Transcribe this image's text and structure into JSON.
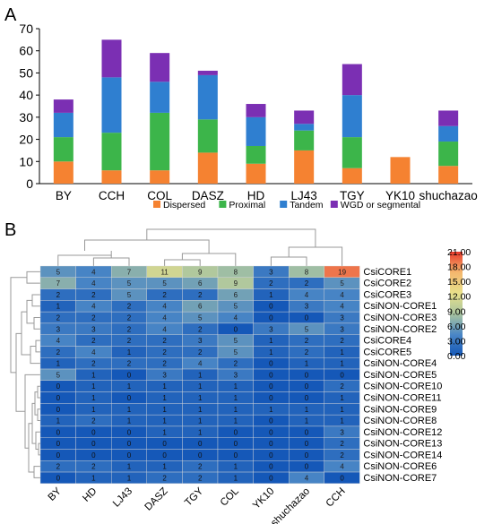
{
  "panel_a_label": "A",
  "panel_b_label": "B",
  "chart_data": [
    {
      "type": "bar",
      "stacked": true,
      "title": "",
      "xlabel": "",
      "ylabel": "",
      "ylim": [
        0,
        70
      ],
      "yticks": [
        0,
        10,
        20,
        30,
        40,
        50,
        60,
        70
      ],
      "categories": [
        "BY",
        "CCH",
        "COL",
        "DASZ",
        "HD",
        "LJ43",
        "TGY",
        "YK10",
        "shuchazao"
      ],
      "series": [
        {
          "name": "Dispersed",
          "color": "#f58231",
          "values": [
            10,
            6,
            6,
            14,
            9,
            15,
            7,
            12,
            8
          ]
        },
        {
          "name": "Proximal",
          "color": "#3cb54a",
          "values": [
            11,
            17,
            26,
            15,
            8,
            9,
            14,
            0,
            11
          ]
        },
        {
          "name": "Tandem",
          "color": "#2f7fd0",
          "values": [
            11,
            25,
            14,
            20,
            13,
            3,
            19,
            0,
            7
          ]
        },
        {
          "name": "WGD or segmental",
          "color": "#7b2fb3",
          "values": [
            6,
            17,
            13,
            2,
            6,
            6,
            14,
            0,
            7
          ]
        }
      ],
      "legend": "bottom",
      "grid": false
    },
    {
      "type": "heatmap",
      "title": "",
      "columns": [
        "BY",
        "HD",
        "LJ43",
        "DASZ",
        "TGY",
        "COL",
        "YK10",
        "shuchazao",
        "CCH"
      ],
      "rows": [
        "CsiCORE1",
        "CsiCORE2",
        "CsiCORE3",
        "CsiNON-CORE1",
        "CsiNON-CORE3",
        "CsiNON-CORE2",
        "CsiCORE4",
        "CsiCORE5",
        "CsiNON-CORE4",
        "CsiNON-CORE5",
        "CsiNON-CORE10",
        "CsiNON-CORE11",
        "CsiNON-CORE9",
        "CsiNON-CORE8",
        "CsiNON-CORE12",
        "CsiNON-CORE13",
        "CsiNON-CORE14",
        "CsiNON-CORE6",
        "CsiNON-CORE7"
      ],
      "values": [
        [
          5,
          4,
          7,
          11,
          9,
          8,
          3,
          8,
          19
        ],
        [
          7,
          4,
          5,
          5,
          6,
          9,
          2,
          2,
          5
        ],
        [
          2,
          2,
          5,
          2,
          2,
          6,
          1,
          4,
          4
        ],
        [
          1,
          4,
          2,
          4,
          6,
          5,
          0,
          3,
          4
        ],
        [
          2,
          2,
          2,
          4,
          5,
          4,
          0,
          0,
          3
        ],
        [
          3,
          3,
          2,
          4,
          2,
          0,
          3,
          5,
          3
        ],
        [
          4,
          2,
          2,
          2,
          3,
          5,
          1,
          2,
          2
        ],
        [
          2,
          4,
          1,
          2,
          2,
          5,
          1,
          2,
          1
        ],
        [
          1,
          2,
          2,
          2,
          4,
          2,
          0,
          1,
          1
        ],
        [
          5,
          1,
          0,
          3,
          1,
          3,
          0,
          0,
          0
        ],
        [
          0,
          1,
          1,
          1,
          1,
          1,
          0,
          0,
          2
        ],
        [
          0,
          1,
          0,
          1,
          1,
          1,
          0,
          0,
          1
        ],
        [
          0,
          1,
          1,
          1,
          1,
          1,
          1,
          1,
          1
        ],
        [
          1,
          2,
          1,
          1,
          1,
          1,
          0,
          1,
          1
        ],
        [
          0,
          0,
          0,
          1,
          1,
          0,
          0,
          0,
          3
        ],
        [
          0,
          0,
          0,
          0,
          0,
          0,
          0,
          0,
          2
        ],
        [
          0,
          0,
          0,
          0,
          0,
          0,
          0,
          0,
          2
        ],
        [
          2,
          2,
          1,
          1,
          2,
          1,
          0,
          0,
          4
        ],
        [
          0,
          1,
          1,
          2,
          2,
          1,
          0,
          4,
          0
        ]
      ],
      "colorbar": {
        "min": 0,
        "max": 21,
        "ticks": [
          "21.00",
          "18.00",
          "15.00",
          "12.00",
          "9.00",
          "6.00",
          "3.00",
          "0.00"
        ],
        "colors": [
          "#1558b8",
          "#4a86c6",
          "#a8c4a0",
          "#e8e08a",
          "#f4b76e",
          "#e8392b"
        ]
      }
    }
  ]
}
